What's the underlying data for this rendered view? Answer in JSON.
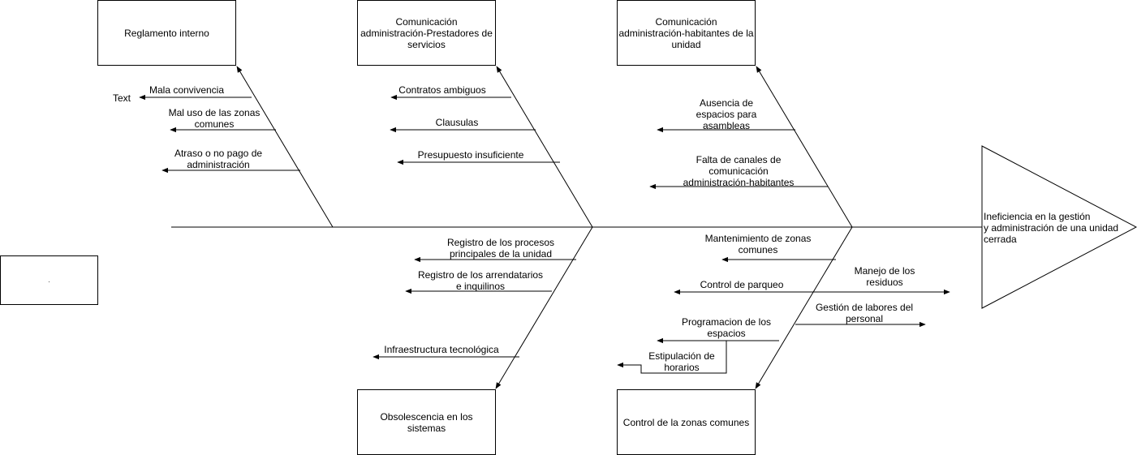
{
  "effect": "Ineficiencia en la gestión\n y administración de una unidad\ncerrada",
  "categories": {
    "reglamento": "Reglamento interno",
    "prestadores": "Comunicación\nadministración-Prestadores de\nservicios",
    "habitantes": "Comunicación\nadministración-habitantes de la\nunidad",
    "obsolescencia": "Obsolescencia en los\nsistemas",
    "zonas": "Control de la zonas comunes"
  },
  "causes": {
    "mala_convivencia": "Mala convivencia",
    "mal_uso": "Mal uso de las zonas\ncomunes",
    "atraso_pago": "Atraso o no pago de\nadministración",
    "contratos": "Contratos ambiguos",
    "clausulas": "Clausulas",
    "presupuesto": "Presupuesto insuficiente",
    "ausencia_espacios": "Ausencia de\nespacios para\nasambleas",
    "falta_canales": "Falta de canales de\ncomunicación\nadministración-habitantes",
    "registro_procesos": "Registro de los procesos\nprincipales de la unidad",
    "registro_arrendatarios": "Registro de los arrendatarios\ne inquilinos",
    "infraestructura": "Infraestructura tecnológica",
    "mantenimiento": "Mantenimiento de zonas\ncomunes",
    "parqueo": "Control de parqueo",
    "residuos": "Manejo de los\nresiduos",
    "programacion": "Programacion de los\nespacios",
    "labores": "Gestión de labores del\npersonal",
    "horarios": "Estipulación de\nhorarios"
  },
  "stray_text": "Text",
  "empty_box_text": "."
}
